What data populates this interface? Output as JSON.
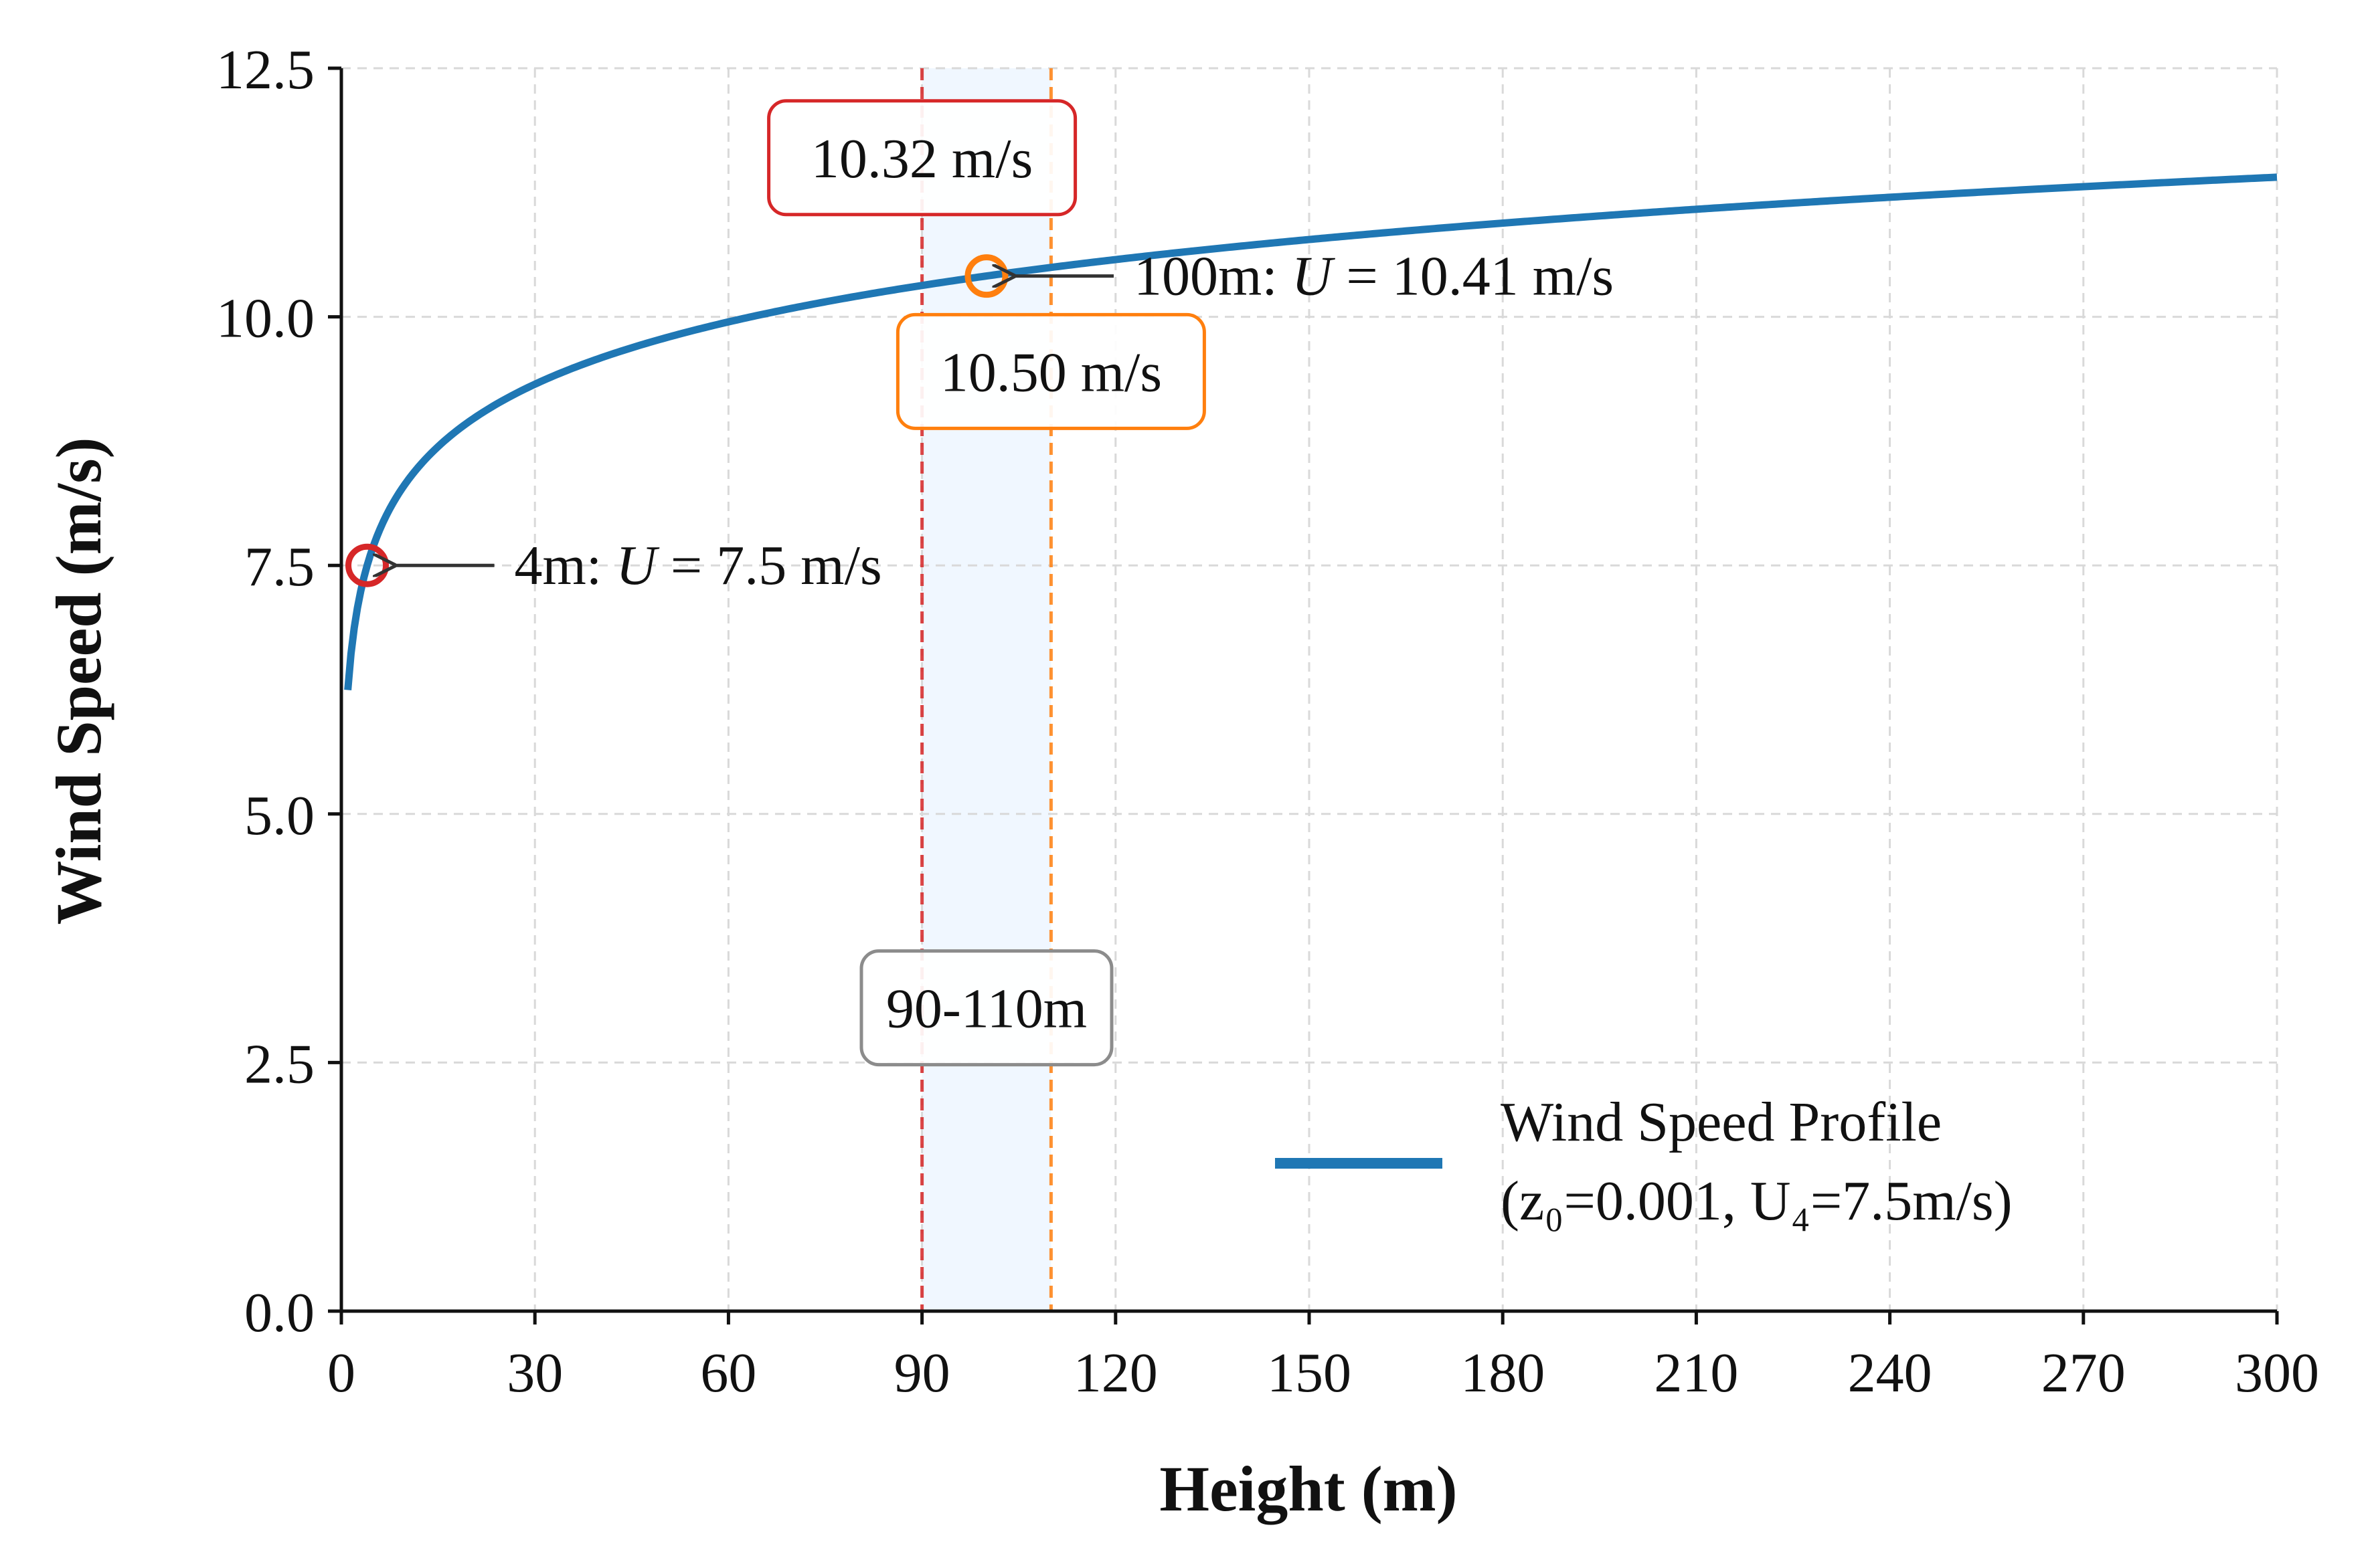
{
  "chart_data": {
    "type": "line",
    "xlabel": "Height (m)",
    "ylabel": "Wind Speed (m/s)",
    "xlim": [
      0,
      300
    ],
    "ylim": [
      0,
      12.5
    ],
    "x_ticks": [
      0,
      30,
      60,
      90,
      120,
      150,
      180,
      210,
      240,
      270,
      300
    ],
    "y_ticks": [
      0.0,
      2.5,
      5.0,
      7.5,
      10.0,
      12.5
    ],
    "x_tick_labels": [
      "0",
      "30",
      "60",
      "90",
      "120",
      "150",
      "180",
      "210",
      "240",
      "270",
      "300"
    ],
    "y_tick_labels": [
      "0.0",
      "2.5",
      "5.0",
      "7.5",
      "10.0",
      "12.5"
    ],
    "grid": true,
    "legend_position": "lower-right",
    "series": [
      {
        "name": "Wind Speed Profile",
        "name_line2": "(z₀=0.001, U₄=7.5m/s)",
        "color": "#1f77b4",
        "model": "logarithmic",
        "z0": 0.001,
        "reference_height": 4,
        "reference_speed": 7.5,
        "x": [
          1,
          2,
          4,
          10,
          20,
          30,
          50,
          90,
          100,
          110,
          150,
          200,
          250,
          300
        ],
        "values": [
          6.2,
          6.82,
          7.5,
          8.25,
          8.81,
          9.14,
          9.55,
          10.32,
          10.41,
          10.5,
          10.73,
          10.97,
          11.17,
          11.35
        ]
      }
    ],
    "markers": [
      {
        "x": 4,
        "y": 7.5,
        "color": "#d62728",
        "label": "4m: ",
        "label_italic": "U",
        "label_rest": " = 7.5 m/s"
      },
      {
        "x": 100,
        "y": 10.41,
        "color": "#ff7f0e",
        "label": "100m: ",
        "label_italic": "U",
        "label_rest": " = 10.41 m/s"
      }
    ],
    "vertical_lines": [
      {
        "x": 90,
        "color": "#d62728",
        "style": "dashed"
      },
      {
        "x": 110,
        "color": "#ff7f0e",
        "style": "dashed"
      }
    ],
    "shaded_span": {
      "x_start": 90,
      "x_end": 110,
      "color": "#ddeeff"
    },
    "boxed_labels": [
      {
        "text": "10.32 m/s",
        "border_color": "#d62728",
        "x": 90,
        "y": 11.6
      },
      {
        "text": "10.50 m/s",
        "border_color": "#ff7f0e",
        "x": 110,
        "y": 9.45
      },
      {
        "text": "90-110m",
        "border_color": "#8c8c8c",
        "x": 100,
        "y": 3.05
      }
    ]
  }
}
